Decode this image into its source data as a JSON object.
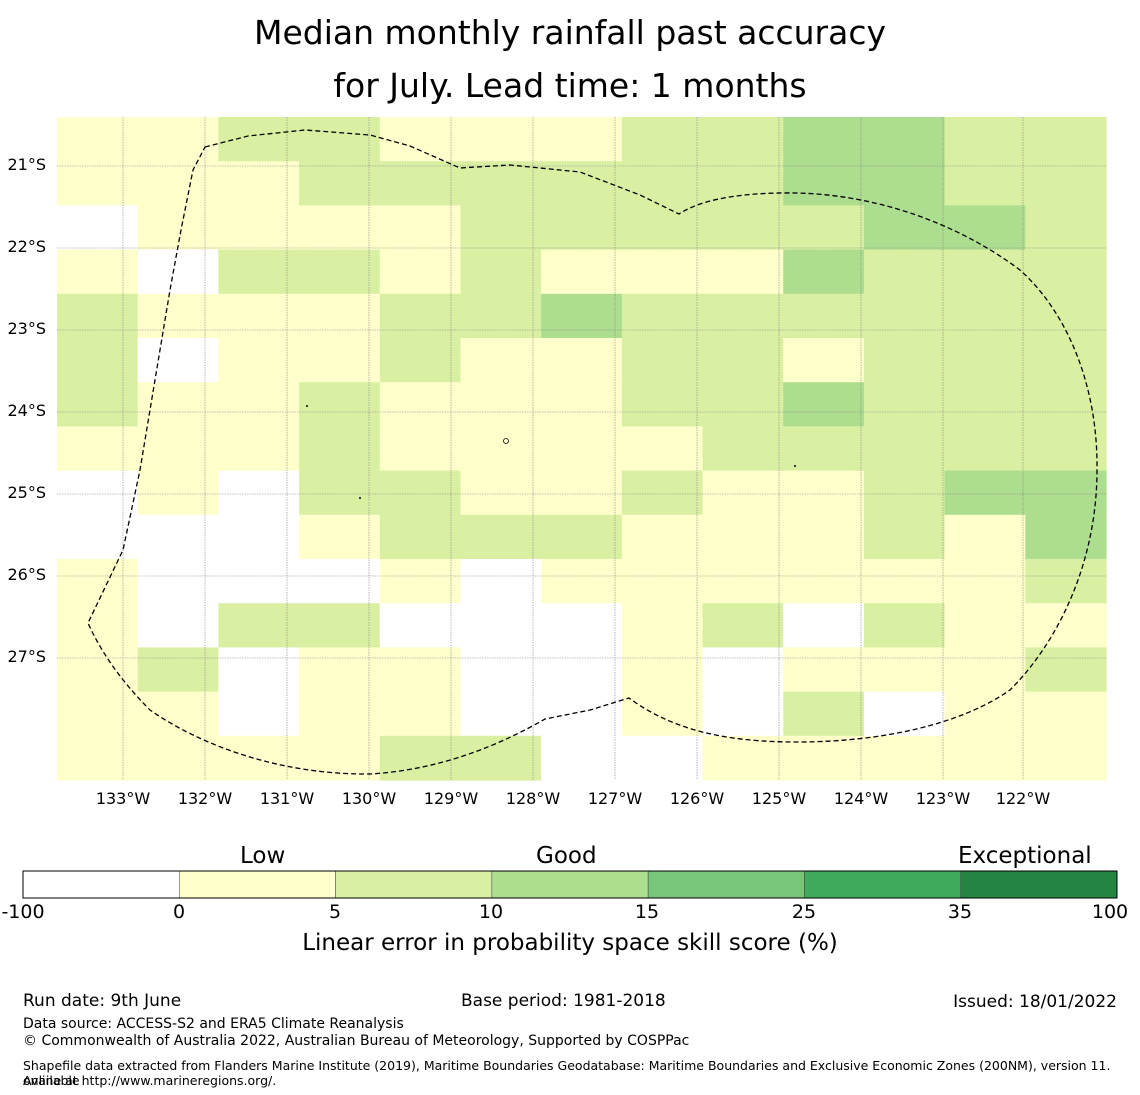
{
  "title": {
    "line1": "Median monthly rainfall past accuracy",
    "line2": "for July. Lead time: 1 months"
  },
  "map": {
    "lat_labels": [
      "21°S",
      "22°S",
      "23°S",
      "24°S",
      "25°S",
      "26°S",
      "27°S"
    ],
    "lon_labels": [
      "133°W",
      "132°W",
      "131°W",
      "130°W",
      "129°W",
      "128°W",
      "127°W",
      "126°W",
      "125°W",
      "124°W",
      "123°W",
      "122°W"
    ],
    "colors": {
      "c0": "#ffffff",
      "c1": "#ffffcc",
      "c2": "#d9f0a3",
      "c3": "#addd8e",
      "c4": "#78c679",
      "c5": "#41ab5d",
      "c6": "#238443"
    },
    "grid_rows": [
      "1122111223322",
      "1112222223322",
      "0111122222332",
      "1022121113222",
      "2111223222222",
      "2011211221222",
      "2112111223222",
      "1112111122222",
      "0102211211233",
      "0001222111213",
      "1000101111112",
      "1022000120211",
      "1201100101112",
      "1101100102011",
      "1111220011111"
    ]
  },
  "colorbar": {
    "categories": [
      "Low",
      "Good",
      "Exceptional"
    ],
    "ticks": [
      "-100",
      "0",
      "5",
      "10",
      "15",
      "25",
      "35",
      "100"
    ],
    "colors": [
      "#ffffff",
      "#ffffcc",
      "#d9f0a3",
      "#addd8e",
      "#78c679",
      "#41ab5d",
      "#238443"
    ],
    "label": "Linear error in probability space skill score (%)"
  },
  "footer": {
    "run_date": "Run date: 9th June",
    "base_period": "Base period: 1981-2018",
    "issued": "Issued: 18/01/2022",
    "data_source": "Data source: ACCESS-S2 and ERA5 Climate Reanalysis",
    "copyright": "© Commonwealth of Australia 2022, Australian Bureau of Meteorology, Supported by COSPPac",
    "shapefile_line1": "Shapefile data extracted from Flanders Marine Institute (2019), Maritime Boundaries Geodatabase: Maritime Boundaries and Exclusive Economic Zones (200NM), version 11. Available",
    "shapefile_line2": "online at http://www.marineregions.org/."
  }
}
